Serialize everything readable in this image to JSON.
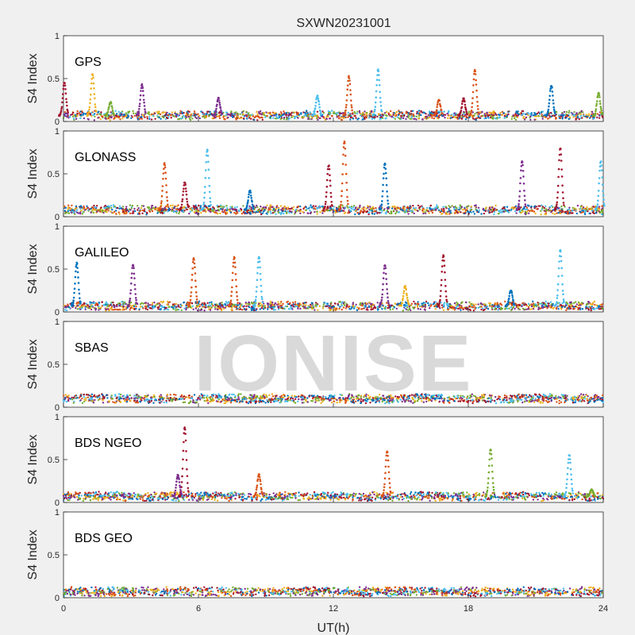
{
  "chart_data": {
    "type": "scatter",
    "title": "SXWN20231001",
    "xlabel": "UT(h)",
    "ylabel": "S4 Index",
    "xlim": [
      0,
      24
    ],
    "ylim": [
      0,
      1
    ],
    "xticks": [
      "0",
      "6",
      "12",
      "18",
      "24"
    ],
    "yticks": [
      "0",
      "0.5",
      "1"
    ],
    "watermark": "IONISE",
    "colors": [
      "#0072BD",
      "#D95319",
      "#EDB120",
      "#7E2F8E",
      "#77AC30",
      "#4DBEEE",
      "#A2142F"
    ],
    "panels": [
      {
        "label": "GPS",
        "baseline": 0.07,
        "spikes": [
          {
            "x": 0.05,
            "y": 0.45,
            "c": 6
          },
          {
            "x": 1.3,
            "y": 0.55,
            "c": 2
          },
          {
            "x": 2.1,
            "y": 0.22,
            "c": 4
          },
          {
            "x": 3.5,
            "y": 0.43,
            "c": 3
          },
          {
            "x": 6.9,
            "y": 0.27,
            "c": 3
          },
          {
            "x": 11.3,
            "y": 0.3,
            "c": 5
          },
          {
            "x": 12.7,
            "y": 0.52,
            "c": 1
          },
          {
            "x": 14.0,
            "y": 0.6,
            "c": 5
          },
          {
            "x": 16.7,
            "y": 0.25,
            "c": 1
          },
          {
            "x": 17.8,
            "y": 0.27,
            "c": 6
          },
          {
            "x": 18.3,
            "y": 0.6,
            "c": 1
          },
          {
            "x": 21.7,
            "y": 0.42,
            "c": 0
          },
          {
            "x": 23.8,
            "y": 0.33,
            "c": 4
          }
        ]
      },
      {
        "label": "GLONASS",
        "baseline": 0.08,
        "spikes": [
          {
            "x": 4.5,
            "y": 0.62,
            "c": 1
          },
          {
            "x": 5.4,
            "y": 0.4,
            "c": 6
          },
          {
            "x": 6.4,
            "y": 0.78,
            "c": 5
          },
          {
            "x": 8.3,
            "y": 0.3,
            "c": 0
          },
          {
            "x": 11.8,
            "y": 0.6,
            "c": 6
          },
          {
            "x": 12.5,
            "y": 0.88,
            "c": 1
          },
          {
            "x": 14.3,
            "y": 0.62,
            "c": 0
          },
          {
            "x": 20.4,
            "y": 0.65,
            "c": 3
          },
          {
            "x": 22.1,
            "y": 0.8,
            "c": 6
          },
          {
            "x": 23.9,
            "y": 0.65,
            "c": 5
          }
        ]
      },
      {
        "label": "GALILEO",
        "baseline": 0.07,
        "spikes": [
          {
            "x": 0.6,
            "y": 0.57,
            "c": 0
          },
          {
            "x": 3.1,
            "y": 0.55,
            "c": 3
          },
          {
            "x": 5.8,
            "y": 0.63,
            "c": 1
          },
          {
            "x": 7.6,
            "y": 0.64,
            "c": 1
          },
          {
            "x": 8.7,
            "y": 0.64,
            "c": 5
          },
          {
            "x": 14.3,
            "y": 0.55,
            "c": 3
          },
          {
            "x": 15.2,
            "y": 0.3,
            "c": 2
          },
          {
            "x": 16.9,
            "y": 0.66,
            "c": 6
          },
          {
            "x": 22.1,
            "y": 0.72,
            "c": 5
          },
          {
            "x": 19.9,
            "y": 0.25,
            "c": 0
          }
        ]
      },
      {
        "label": "SBAS",
        "baseline": 0.1,
        "spikes": []
      },
      {
        "label": "BDS NGEO",
        "baseline": 0.07,
        "spikes": [
          {
            "x": 5.4,
            "y": 0.88,
            "c": 6
          },
          {
            "x": 5.1,
            "y": 0.32,
            "c": 3
          },
          {
            "x": 8.7,
            "y": 0.33,
            "c": 1
          },
          {
            "x": 14.4,
            "y": 0.6,
            "c": 1
          },
          {
            "x": 19.0,
            "y": 0.62,
            "c": 4
          },
          {
            "x": 22.5,
            "y": 0.56,
            "c": 5
          },
          {
            "x": 23.5,
            "y": 0.15,
            "c": 4
          }
        ]
      },
      {
        "label": "BDS GEO",
        "baseline": 0.07,
        "spikes": []
      }
    ]
  }
}
